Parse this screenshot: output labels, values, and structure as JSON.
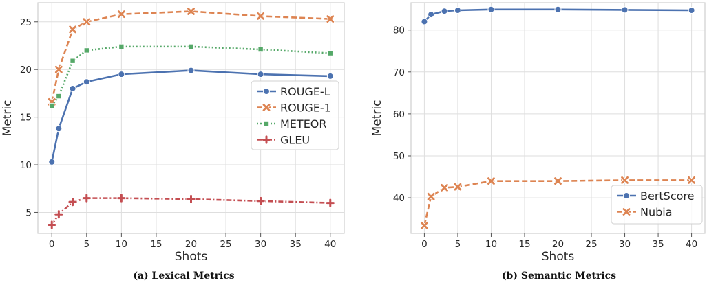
{
  "captions": [
    "(a) Lexical Metrics",
    "(b) Semantic Metrics"
  ],
  "chart_data": [
    {
      "type": "line",
      "xlabel": "Shots",
      "ylabel": "Metric",
      "xlim": [
        -2,
        42
      ],
      "ylim": [
        2.8,
        27
      ],
      "xticks": [
        0,
        5,
        10,
        15,
        20,
        25,
        30,
        35,
        40
      ],
      "yticks": [
        5,
        10,
        15,
        20,
        25
      ],
      "grid": true,
      "legend_position": "center-right",
      "x": [
        0,
        1,
        3,
        5,
        10,
        20,
        30,
        40
      ],
      "series": [
        {
          "name": "ROUGE-L",
          "color": "#4c72b0",
          "marker": "circle",
          "dash": "solid",
          "values": [
            10.3,
            13.8,
            18.0,
            18.7,
            19.5,
            19.9,
            19.5,
            19.3
          ]
        },
        {
          "name": "ROUGE-1",
          "color": "#dd8452",
          "marker": "x",
          "dash": "dashed",
          "values": [
            16.6,
            20.0,
            24.2,
            25.0,
            25.8,
            26.1,
            25.6,
            25.3
          ]
        },
        {
          "name": "METEOR",
          "color": "#55a868",
          "marker": "square",
          "dash": "dotted",
          "values": [
            16.2,
            17.2,
            20.9,
            22.0,
            22.4,
            22.4,
            22.1,
            21.7
          ]
        },
        {
          "name": "GLEU",
          "color": "#c44e52",
          "marker": "plus",
          "dash": "dashdot",
          "values": [
            3.7,
            4.8,
            6.1,
            6.5,
            6.5,
            6.4,
            6.2,
            6.0
          ]
        }
      ]
    },
    {
      "type": "line",
      "xlabel": "Shots",
      "ylabel": "Metric",
      "xlim": [
        -2,
        42
      ],
      "ylim": [
        31.5,
        86.5
      ],
      "xticks": [
        0,
        5,
        10,
        15,
        20,
        25,
        30,
        35,
        40
      ],
      "yticks": [
        40,
        50,
        60,
        70,
        80
      ],
      "grid": true,
      "legend_position": "lower-right",
      "x": [
        0,
        1,
        3,
        5,
        10,
        20,
        30,
        40
      ],
      "series": [
        {
          "name": "BertScore",
          "color": "#4c72b0",
          "marker": "circle",
          "dash": "solid",
          "values": [
            82.0,
            83.7,
            84.5,
            84.7,
            84.9,
            84.9,
            84.8,
            84.7
          ]
        },
        {
          "name": "Nubia",
          "color": "#dd8452",
          "marker": "x",
          "dash": "dashed",
          "values": [
            33.4,
            40.3,
            42.4,
            42.6,
            44.0,
            44.0,
            44.2,
            44.2
          ]
        }
      ]
    }
  ]
}
